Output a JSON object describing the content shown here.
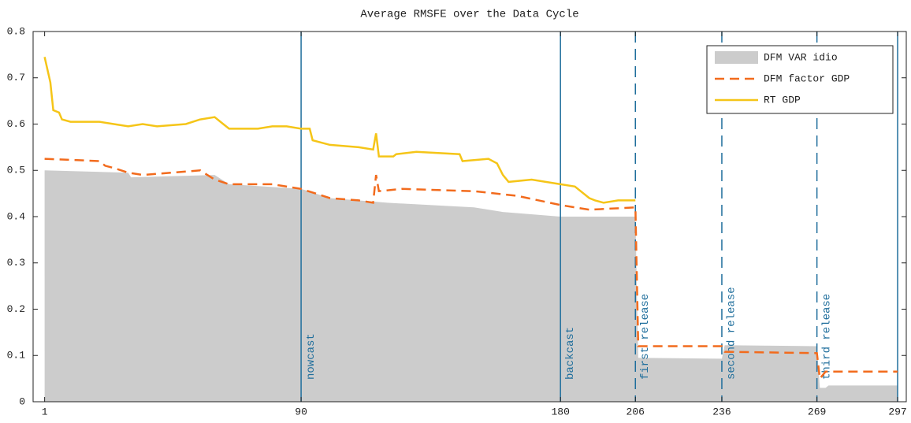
{
  "chart_data": {
    "type": "line",
    "title": "Average RMSFE over the Data Cycle",
    "xlim": [
      -3,
      300
    ],
    "ylim": [
      0,
      0.8
    ],
    "xticks": [
      1,
      90,
      180,
      206,
      236,
      269,
      297
    ],
    "yticks": [
      0,
      0.1,
      0.2,
      0.3,
      0.4,
      0.5,
      0.6,
      0.7,
      0.8
    ],
    "legend": "upper right",
    "series": [
      {
        "name": "DFM VAR idio",
        "color": "#cccccc",
        "style": "area",
        "x": [
          1,
          30,
          31,
          60,
          65,
          90,
          100,
          120,
          150,
          160,
          180,
          206,
          207,
          236,
          237,
          269,
          270,
          272,
          273,
          297
        ],
        "values": [
          0.5,
          0.495,
          0.485,
          0.49,
          0.47,
          0.46,
          0.44,
          0.43,
          0.42,
          0.41,
          0.4,
          0.4,
          0.095,
          0.093,
          0.122,
          0.12,
          0.03,
          0.03,
          0.035,
          0.035
        ]
      },
      {
        "name": "DFM factor GDP",
        "color": "#f26b1d",
        "style": "dashed",
        "x": [
          1,
          20,
          22,
          25,
          30,
          35,
          55,
          60,
          65,
          80,
          90,
          95,
          100,
          110,
          115,
          116,
          117,
          125,
          150,
          165,
          180,
          190,
          206,
          207,
          236,
          237,
          269,
          270,
          272,
          297
        ],
        "values": [
          0.525,
          0.52,
          0.51,
          0.505,
          0.495,
          0.49,
          0.5,
          0.48,
          0.47,
          0.47,
          0.46,
          0.45,
          0.44,
          0.435,
          0.43,
          0.49,
          0.455,
          0.46,
          0.455,
          0.445,
          0.425,
          0.415,
          0.42,
          0.12,
          0.12,
          0.108,
          0.105,
          0.05,
          0.065,
          0.065
        ]
      },
      {
        "name": "RT GDP",
        "color": "#f5c518",
        "style": "solid",
        "x": [
          1,
          3,
          4,
          6,
          7,
          10,
          20,
          25,
          30,
          35,
          40,
          50,
          55,
          60,
          63,
          65,
          75,
          80,
          85,
          90,
          93,
          94,
          100,
          110,
          115,
          116,
          117,
          122,
          123,
          130,
          145,
          146,
          155,
          158,
          160,
          162,
          170,
          180,
          185,
          190,
          192,
          195,
          200,
          206
        ],
        "values": [
          0.745,
          0.69,
          0.63,
          0.625,
          0.61,
          0.605,
          0.605,
          0.6,
          0.595,
          0.6,
          0.595,
          0.6,
          0.61,
          0.615,
          0.6,
          0.59,
          0.59,
          0.595,
          0.595,
          0.59,
          0.59,
          0.565,
          0.555,
          0.55,
          0.545,
          0.58,
          0.53,
          0.53,
          0.535,
          0.54,
          0.535,
          0.52,
          0.525,
          0.515,
          0.49,
          0.475,
          0.48,
          0.47,
          0.465,
          0.44,
          0.435,
          0.43,
          0.435,
          0.435
        ]
      }
    ],
    "vlines": [
      {
        "x": 90,
        "label": "nowcast",
        "style": "solid"
      },
      {
        "x": 180,
        "label": "backcast",
        "style": "solid"
      },
      {
        "x": 206,
        "label": "first release",
        "style": "dashed"
      },
      {
        "x": 236,
        "label": "second release",
        "style": "dashed"
      },
      {
        "x": 269,
        "label": "third release",
        "style": "dashed"
      },
      {
        "x": 297,
        "style": "solid"
      }
    ],
    "vline_color": "#1f6e9c"
  }
}
